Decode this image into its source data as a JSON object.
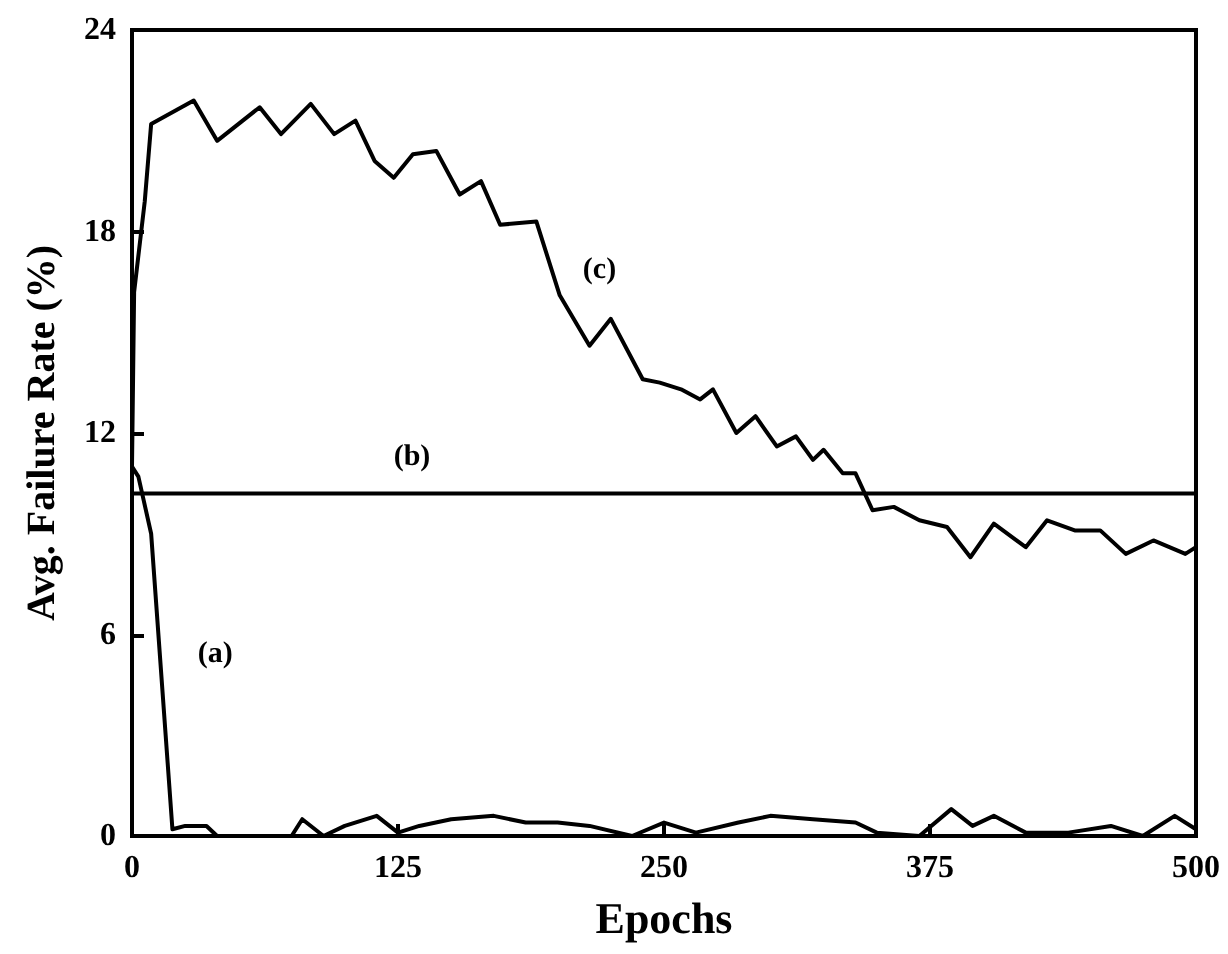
{
  "chart_data": {
    "type": "line",
    "xlabel": "Epochs",
    "ylabel": "Avg. Failure Rate (%)",
    "xlim": [
      0,
      500
    ],
    "ylim": [
      0,
      24
    ],
    "xticks": [
      0,
      125,
      250,
      375,
      500
    ],
    "yticks": [
      0,
      6,
      12,
      18,
      24
    ],
    "grid": false,
    "marker": "none",
    "line_style": "solid",
    "series": [
      {
        "name": "(a)",
        "color": "#000000",
        "x": [
          0,
          3,
          9,
          19,
          25,
          35,
          40,
          75,
          80,
          90,
          100,
          115,
          125,
          135,
          150,
          170,
          185,
          200,
          215,
          235,
          250,
          265,
          285,
          300,
          320,
          340,
          350,
          370,
          385,
          395,
          405,
          420,
          440,
          460,
          475,
          490,
          500
        ],
        "values": [
          11,
          10.7,
          9,
          0.2,
          0.3,
          0.3,
          0,
          0,
          0.5,
          0,
          0.3,
          0.6,
          0.1,
          0.3,
          0.5,
          0.6,
          0.4,
          0.4,
          0.3,
          0,
          0.4,
          0.1,
          0.4,
          0.6,
          0.5,
          0.4,
          0.1,
          0,
          0.8,
          0.3,
          0.6,
          0.1,
          0.1,
          0.3,
          0,
          0.6,
          0.2
        ]
      },
      {
        "name": "(b)",
        "color": "#000000",
        "x": [
          0,
          500
        ],
        "values": [
          10.2,
          10.2
        ]
      },
      {
        "name": "(c)",
        "color": "#000000",
        "x": [
          0,
          1,
          6,
          9,
          29,
          40,
          60,
          70,
          84,
          95,
          105,
          114,
          123,
          132,
          143,
          154,
          164,
          173,
          190,
          201,
          215,
          225,
          240,
          248,
          258,
          267,
          273,
          284,
          293,
          303,
          312,
          320,
          325,
          334,
          340,
          348,
          358,
          370,
          383,
          394,
          405,
          420,
          430,
          443,
          455,
          467,
          480,
          495,
          500
        ],
        "values": [
          11,
          16.2,
          18.9,
          21.2,
          21.9,
          20.7,
          21.7,
          20.9,
          21.8,
          20.9,
          21.3,
          20.1,
          19.6,
          20.3,
          20.4,
          19.1,
          19.5,
          18.2,
          18.3,
          16.1,
          14.6,
          15.4,
          13.6,
          13.5,
          13.3,
          13,
          13.3,
          12,
          12.5,
          11.6,
          11.9,
          11.2,
          11.5,
          10.8,
          10.8,
          9.7,
          9.8,
          9.4,
          9.2,
          8.3,
          9.3,
          8.6,
          9.4,
          9.1,
          9.1,
          8.4,
          8.8,
          8.4,
          8.6
        ]
      }
    ]
  }
}
